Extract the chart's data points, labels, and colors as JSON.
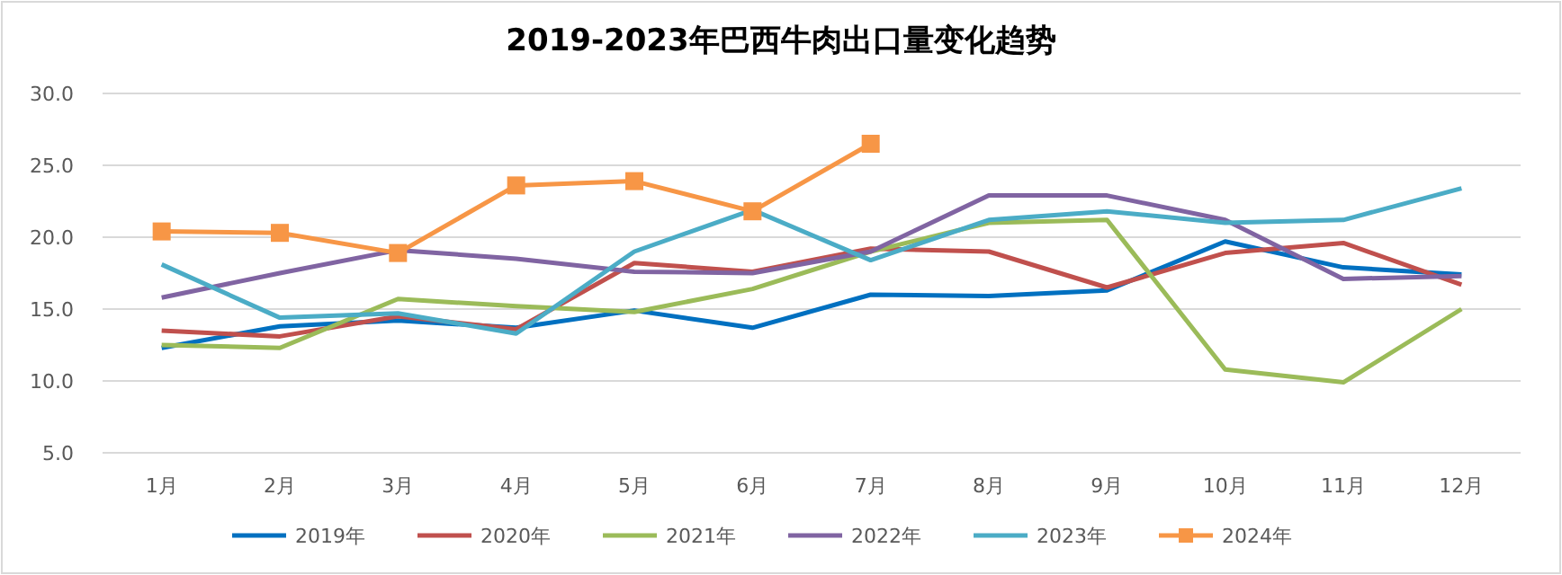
{
  "chart_data": {
    "type": "line",
    "title": "2019-2023年巴西牛肉出口量变化趋势",
    "categories": [
      "1月",
      "2月",
      "3月",
      "4月",
      "5月",
      "6月",
      "7月",
      "8月",
      "9月",
      "10月",
      "11月",
      "12月"
    ],
    "ylim": [
      5,
      30
    ],
    "yticks": [
      {
        "value": 5,
        "label": "5.0"
      },
      {
        "value": 10,
        "label": "10.0"
      },
      {
        "value": 15,
        "label": "15.0"
      },
      {
        "value": 20,
        "label": "20.0"
      },
      {
        "value": 25,
        "label": "25.0"
      },
      {
        "value": 30,
        "label": "30.0"
      }
    ],
    "grid": "y",
    "legend": "bottom",
    "marker": "none",
    "line_style": "solid",
    "series": [
      {
        "name": "2019年",
        "color": "#0070c0",
        "values": [
          12.3,
          13.8,
          14.2,
          13.7,
          14.9,
          13.7,
          16.0,
          15.9,
          16.3,
          19.7,
          17.9,
          17.4
        ]
      },
      {
        "name": "2020年",
        "color": "#c0504d",
        "values": [
          13.5,
          13.1,
          14.5,
          13.6,
          18.2,
          17.6,
          19.2,
          19.0,
          16.5,
          18.9,
          19.6,
          16.7
        ]
      },
      {
        "name": "2021年",
        "color": "#9bbb59",
        "values": [
          12.5,
          12.3,
          15.7,
          15.2,
          14.8,
          16.4,
          19.0,
          21.0,
          21.2,
          10.8,
          9.9,
          15.0
        ]
      },
      {
        "name": "2022年",
        "color": "#8064a2",
        "values": [
          15.8,
          17.5,
          19.1,
          18.5,
          17.6,
          17.5,
          19.0,
          22.9,
          22.9,
          21.2,
          17.1,
          17.3
        ]
      },
      {
        "name": "2023年",
        "color": "#4bacc6",
        "values": [
          18.1,
          14.4,
          14.7,
          13.3,
          19.0,
          21.9,
          18.4,
          21.2,
          21.8,
          21.0,
          21.2,
          23.4
        ]
      },
      {
        "name": "2024年",
        "color": "#f79646",
        "marker": "square",
        "values": [
          20.4,
          20.3,
          18.9,
          23.6,
          23.9,
          21.8,
          26.5,
          null,
          null,
          null,
          null,
          null
        ]
      }
    ]
  }
}
